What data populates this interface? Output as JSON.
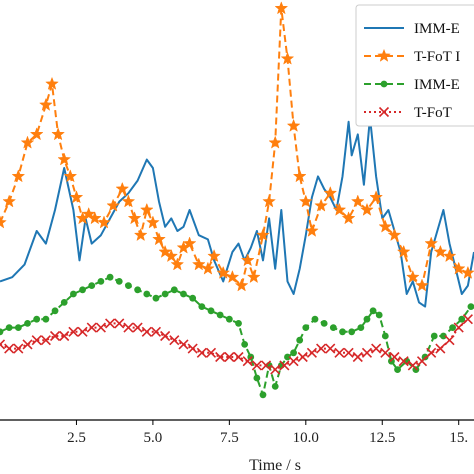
{
  "chart_data": {
    "type": "line",
    "xlabel": "Time / s",
    "ylabel": "",
    "xlim": [
      0,
      15.5
    ],
    "ylim": [
      0,
      100
    ],
    "x_ticks": [
      2.5,
      5.0,
      7.5,
      10.0,
      12.5,
      15.0
    ],
    "x_tick_labels": [
      "2.5",
      "5.0",
      "7.5",
      "10.0",
      "12.5",
      "15."
    ],
    "grid": false,
    "legend_position": "top-right",
    "series": [
      {
        "name": "IMM-E",
        "color": "#1f77b4",
        "linestyle": "solid",
        "marker": "none",
        "x": [
          0,
          0.4,
          0.8,
          1.2,
          1.5,
          1.8,
          2.1,
          2.4,
          2.6,
          2.8,
          3.0,
          3.3,
          3.6,
          3.9,
          4.2,
          4.5,
          4.8,
          5.0,
          5.2,
          5.4,
          5.6,
          5.8,
          6.0,
          6.2,
          6.5,
          6.8,
          7.0,
          7.3,
          7.6,
          7.8,
          8.0,
          8.2,
          8.4,
          8.6,
          8.8,
          9.0,
          9.2,
          9.4,
          9.6,
          9.8,
          10.0,
          10.2,
          10.4,
          10.6,
          10.8,
          11.0,
          11.2,
          11.4,
          11.5,
          11.7,
          11.9,
          12.1,
          12.3,
          12.5,
          12.7,
          12.9,
          13.1,
          13.3,
          13.5,
          13.7,
          13.9,
          14.1,
          14.3,
          14.5,
          14.7,
          14.9,
          15.1,
          15.3,
          15.5
        ],
        "y": [
          33,
          34,
          37,
          45,
          42,
          50,
          60,
          50,
          38,
          48,
          42,
          44,
          48,
          52,
          54,
          57,
          62,
          60,
          52,
          46,
          48,
          45,
          46,
          50,
          44,
          43,
          38,
          33,
          40,
          42,
          38,
          41,
          45,
          38,
          48,
          36,
          50,
          33,
          30,
          36,
          44,
          53,
          58,
          55,
          53,
          50,
          58,
          71,
          63,
          68,
          56,
          72,
          58,
          48,
          50,
          45,
          40,
          30,
          33,
          28,
          27,
          40,
          45,
          50,
          42,
          36,
          30,
          32,
          40
        ]
      },
      {
        "name": "T-FoT I",
        "color": "#ff7f0e",
        "linestyle": "dashed",
        "marker": "star",
        "x": [
          0,
          0.3,
          0.6,
          0.9,
          1.2,
          1.5,
          1.7,
          1.9,
          2.1,
          2.3,
          2.5,
          2.7,
          2.9,
          3.1,
          3.4,
          3.7,
          4.0,
          4.2,
          4.4,
          4.6,
          4.8,
          5.0,
          5.2,
          5.4,
          5.6,
          5.8,
          6.0,
          6.2,
          6.5,
          6.8,
          7.0,
          7.3,
          7.6,
          7.9,
          8.1,
          8.3,
          8.6,
          8.8,
          9.0,
          9.2,
          9.4,
          9.6,
          9.8,
          10.0,
          10.2,
          10.5,
          10.8,
          11.1,
          11.4,
          11.7,
          12.0,
          12.3,
          12.6,
          12.9,
          13.2,
          13.5,
          13.8,
          14.1,
          14.4,
          14.7,
          15.0,
          15.3
        ],
        "y": [
          47,
          52,
          58,
          66,
          68,
          75,
          80,
          68,
          62,
          58,
          53,
          48,
          49,
          48,
          47,
          51,
          55,
          52,
          48,
          44,
          50,
          47,
          43,
          40,
          39,
          37,
          41,
          42,
          37,
          36,
          39,
          35,
          34,
          32,
          38,
          34,
          44,
          52,
          66,
          98,
          86,
          70,
          58,
          52,
          45,
          51,
          54,
          50,
          48,
          52,
          50,
          53,
          46,
          44,
          40,
          34,
          32,
          42,
          40,
          39,
          36,
          35
        ]
      },
      {
        "name": "IMM-E",
        "color": "#2ca02c",
        "linestyle": "dashed",
        "marker": "circle",
        "x": [
          0,
          0.3,
          0.6,
          0.9,
          1.2,
          1.5,
          1.8,
          2.1,
          2.4,
          2.7,
          3.0,
          3.3,
          3.6,
          3.9,
          4.2,
          4.5,
          4.8,
          5.1,
          5.4,
          5.7,
          6.0,
          6.3,
          6.6,
          6.9,
          7.2,
          7.5,
          7.8,
          8.0,
          8.2,
          8.4,
          8.6,
          8.8,
          9.0,
          9.2,
          9.4,
          9.6,
          9.8,
          10.0,
          10.3,
          10.6,
          10.9,
          11.2,
          11.5,
          11.8,
          12.0,
          12.2,
          12.4,
          12.6,
          12.8,
          13.0,
          13.3,
          13.6,
          13.9,
          14.2,
          14.5,
          14.8,
          15.1,
          15.4
        ],
        "y": [
          21,
          22,
          22,
          23,
          24,
          24,
          26,
          28,
          30,
          31,
          32,
          33,
          34,
          33,
          32,
          31,
          30,
          29,
          30,
          31,
          30,
          29,
          27,
          26,
          25,
          24,
          23,
          18,
          15,
          10,
          6,
          13,
          8,
          13,
          15,
          16,
          19,
          22,
          24,
          23,
          22,
          21,
          21,
          22,
          24,
          26,
          25,
          20,
          14,
          12,
          14,
          12,
          15,
          20,
          20,
          22,
          24,
          27
        ]
      },
      {
        "name": "T-FoT",
        "color": "#d62728",
        "linestyle": "dotted",
        "marker": "x",
        "x": [
          0,
          0.3,
          0.6,
          0.9,
          1.2,
          1.5,
          1.8,
          2.1,
          2.4,
          2.7,
          3.0,
          3.3,
          3.6,
          3.9,
          4.2,
          4.5,
          4.8,
          5.1,
          5.4,
          5.7,
          6.0,
          6.3,
          6.6,
          6.9,
          7.2,
          7.5,
          7.8,
          8.1,
          8.4,
          8.7,
          9.0,
          9.3,
          9.6,
          9.9,
          10.2,
          10.5,
          10.8,
          11.1,
          11.4,
          11.7,
          12.0,
          12.3,
          12.6,
          12.9,
          13.2,
          13.5,
          13.8,
          14.1,
          14.4,
          14.7,
          15.0,
          15.3
        ],
        "y": [
          18,
          17,
          17,
          18,
          19,
          19,
          20,
          20,
          21,
          21,
          22,
          22,
          23,
          23,
          22,
          22,
          21,
          21,
          20,
          19,
          18,
          17,
          16,
          16,
          15,
          15,
          15,
          14,
          13,
          13,
          12,
          13,
          14,
          15,
          16,
          17,
          17,
          16,
          16,
          15,
          16,
          17,
          16,
          15,
          14,
          13,
          14,
          16,
          17,
          19,
          22,
          24
        ]
      }
    ]
  }
}
